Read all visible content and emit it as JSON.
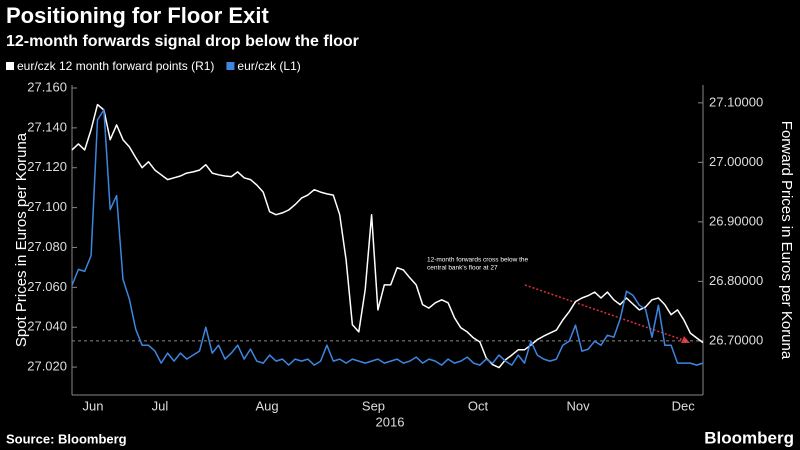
{
  "chart_data": {
    "type": "line",
    "title": "Positioning for Floor Exit",
    "subtitle": "12-month forwards signal drop below the floor",
    "ylabel": "Spot Prices in Euros per Koruna",
    "y2label": "Forward Prices in Euros per Koruna",
    "source": "Source: Bloomberg",
    "brand": "Bloomberg",
    "annotation": [
      "12-month forwards cross below the",
      "central bank's floor at 27"
    ],
    "xlabel": "2016",
    "xlim": [
      0,
      99
    ],
    "xticks": [
      {
        "value": 3.3,
        "label": "Jun"
      },
      {
        "value": 13.8,
        "label": "Jul"
      },
      {
        "value": 30.6,
        "label": "Aug"
      },
      {
        "value": 47.3,
        "label": "Sep"
      },
      {
        "value": 63.7,
        "label": "Oct"
      },
      {
        "value": 79.4,
        "label": "Nov"
      },
      {
        "value": 95.9,
        "label": "Dec"
      }
    ],
    "ylim": [
      27.006,
      27.1615
    ],
    "yticks": [
      {
        "value": 27.02,
        "label": "27.020"
      },
      {
        "value": 27.04,
        "label": "27.040"
      },
      {
        "value": 27.06,
        "label": "27.060"
      },
      {
        "value": 27.08,
        "label": "27.080"
      },
      {
        "value": 27.1,
        "label": "27.100"
      },
      {
        "value": 27.12,
        "label": "27.120"
      },
      {
        "value": 27.14,
        "label": "27.140"
      },
      {
        "value": 27.16,
        "label": "27.160"
      }
    ],
    "y2lim": [
      26.609,
      27.13
    ],
    "y2ticks": [
      {
        "value": 26.7,
        "label": "26.70000"
      },
      {
        "value": 26.8,
        "label": "26.80000"
      },
      {
        "value": 26.9,
        "label": "26.90000"
      },
      {
        "value": 27.0,
        "label": "27.00000"
      },
      {
        "value": 27.1,
        "label": "27.10000"
      }
    ],
    "reference_line": {
      "axis": "y2",
      "value": 26.7
    },
    "series": [
      {
        "name": "eur/czk 12 month forward points (R1)",
        "color": "#ffffff",
        "axis": "y2",
        "values": [
          27.021,
          27.031,
          27.021,
          27.055,
          27.097,
          27.088,
          27.038,
          27.063,
          27.038,
          27.026,
          27.008,
          26.991,
          27.001,
          26.987,
          26.979,
          26.971,
          26.974,
          26.977,
          26.982,
          26.984,
          26.987,
          26.996,
          26.982,
          26.979,
          26.977,
          26.976,
          26.984,
          26.974,
          26.971,
          26.962,
          26.95,
          26.917,
          26.912,
          26.915,
          26.92,
          26.929,
          26.94,
          26.945,
          26.954,
          26.95,
          26.947,
          26.945,
          26.912,
          26.836,
          26.727,
          26.715,
          26.786,
          26.912,
          26.752,
          26.794,
          26.794,
          26.823,
          26.819,
          26.806,
          26.794,
          26.761,
          26.755,
          26.764,
          26.769,
          26.764,
          26.739,
          26.722,
          26.715,
          26.705,
          26.698,
          26.671,
          26.66,
          26.655,
          26.668,
          26.676,
          26.685,
          26.685,
          26.693,
          26.702,
          26.708,
          26.713,
          26.718,
          26.735,
          26.749,
          26.766,
          26.772,
          26.776,
          26.782,
          26.772,
          26.782,
          26.769,
          26.761,
          26.772,
          26.762,
          26.752,
          26.757,
          26.769,
          26.772,
          26.761,
          26.744,
          26.752,
          26.735,
          26.713,
          26.705,
          26.697
        ]
      },
      {
        "name": "eur/czk (L1)",
        "color": "#3d86df",
        "axis": "y",
        "values": [
          27.061,
          27.069,
          27.068,
          27.076,
          27.144,
          27.149,
          27.099,
          27.106,
          27.064,
          27.054,
          27.039,
          27.031,
          27.031,
          27.028,
          27.022,
          27.027,
          27.023,
          27.027,
          27.024,
          27.026,
          27.028,
          27.04,
          27.027,
          27.031,
          27.024,
          27.027,
          27.031,
          27.024,
          27.029,
          27.023,
          27.022,
          27.026,
          27.023,
          27.024,
          27.021,
          27.024,
          27.023,
          27.024,
          27.021,
          27.023,
          27.031,
          27.023,
          27.024,
          27.022,
          27.024,
          27.023,
          27.022,
          27.023,
          27.024,
          27.022,
          27.023,
          27.024,
          27.022,
          27.023,
          27.025,
          27.022,
          27.024,
          27.023,
          27.021,
          27.024,
          27.022,
          27.023,
          27.025,
          27.022,
          27.021,
          27.024,
          27.022,
          27.026,
          27.023,
          27.021,
          27.026,
          27.022,
          27.033,
          27.026,
          27.024,
          27.023,
          27.024,
          27.031,
          27.033,
          27.041,
          27.028,
          27.029,
          27.033,
          27.031,
          27.036,
          27.035,
          27.044,
          27.058,
          27.056,
          27.051,
          27.049,
          27.035,
          27.051,
          27.031,
          27.031,
          27.022,
          27.022,
          27.022,
          27.021,
          27.022
        ]
      }
    ]
  }
}
